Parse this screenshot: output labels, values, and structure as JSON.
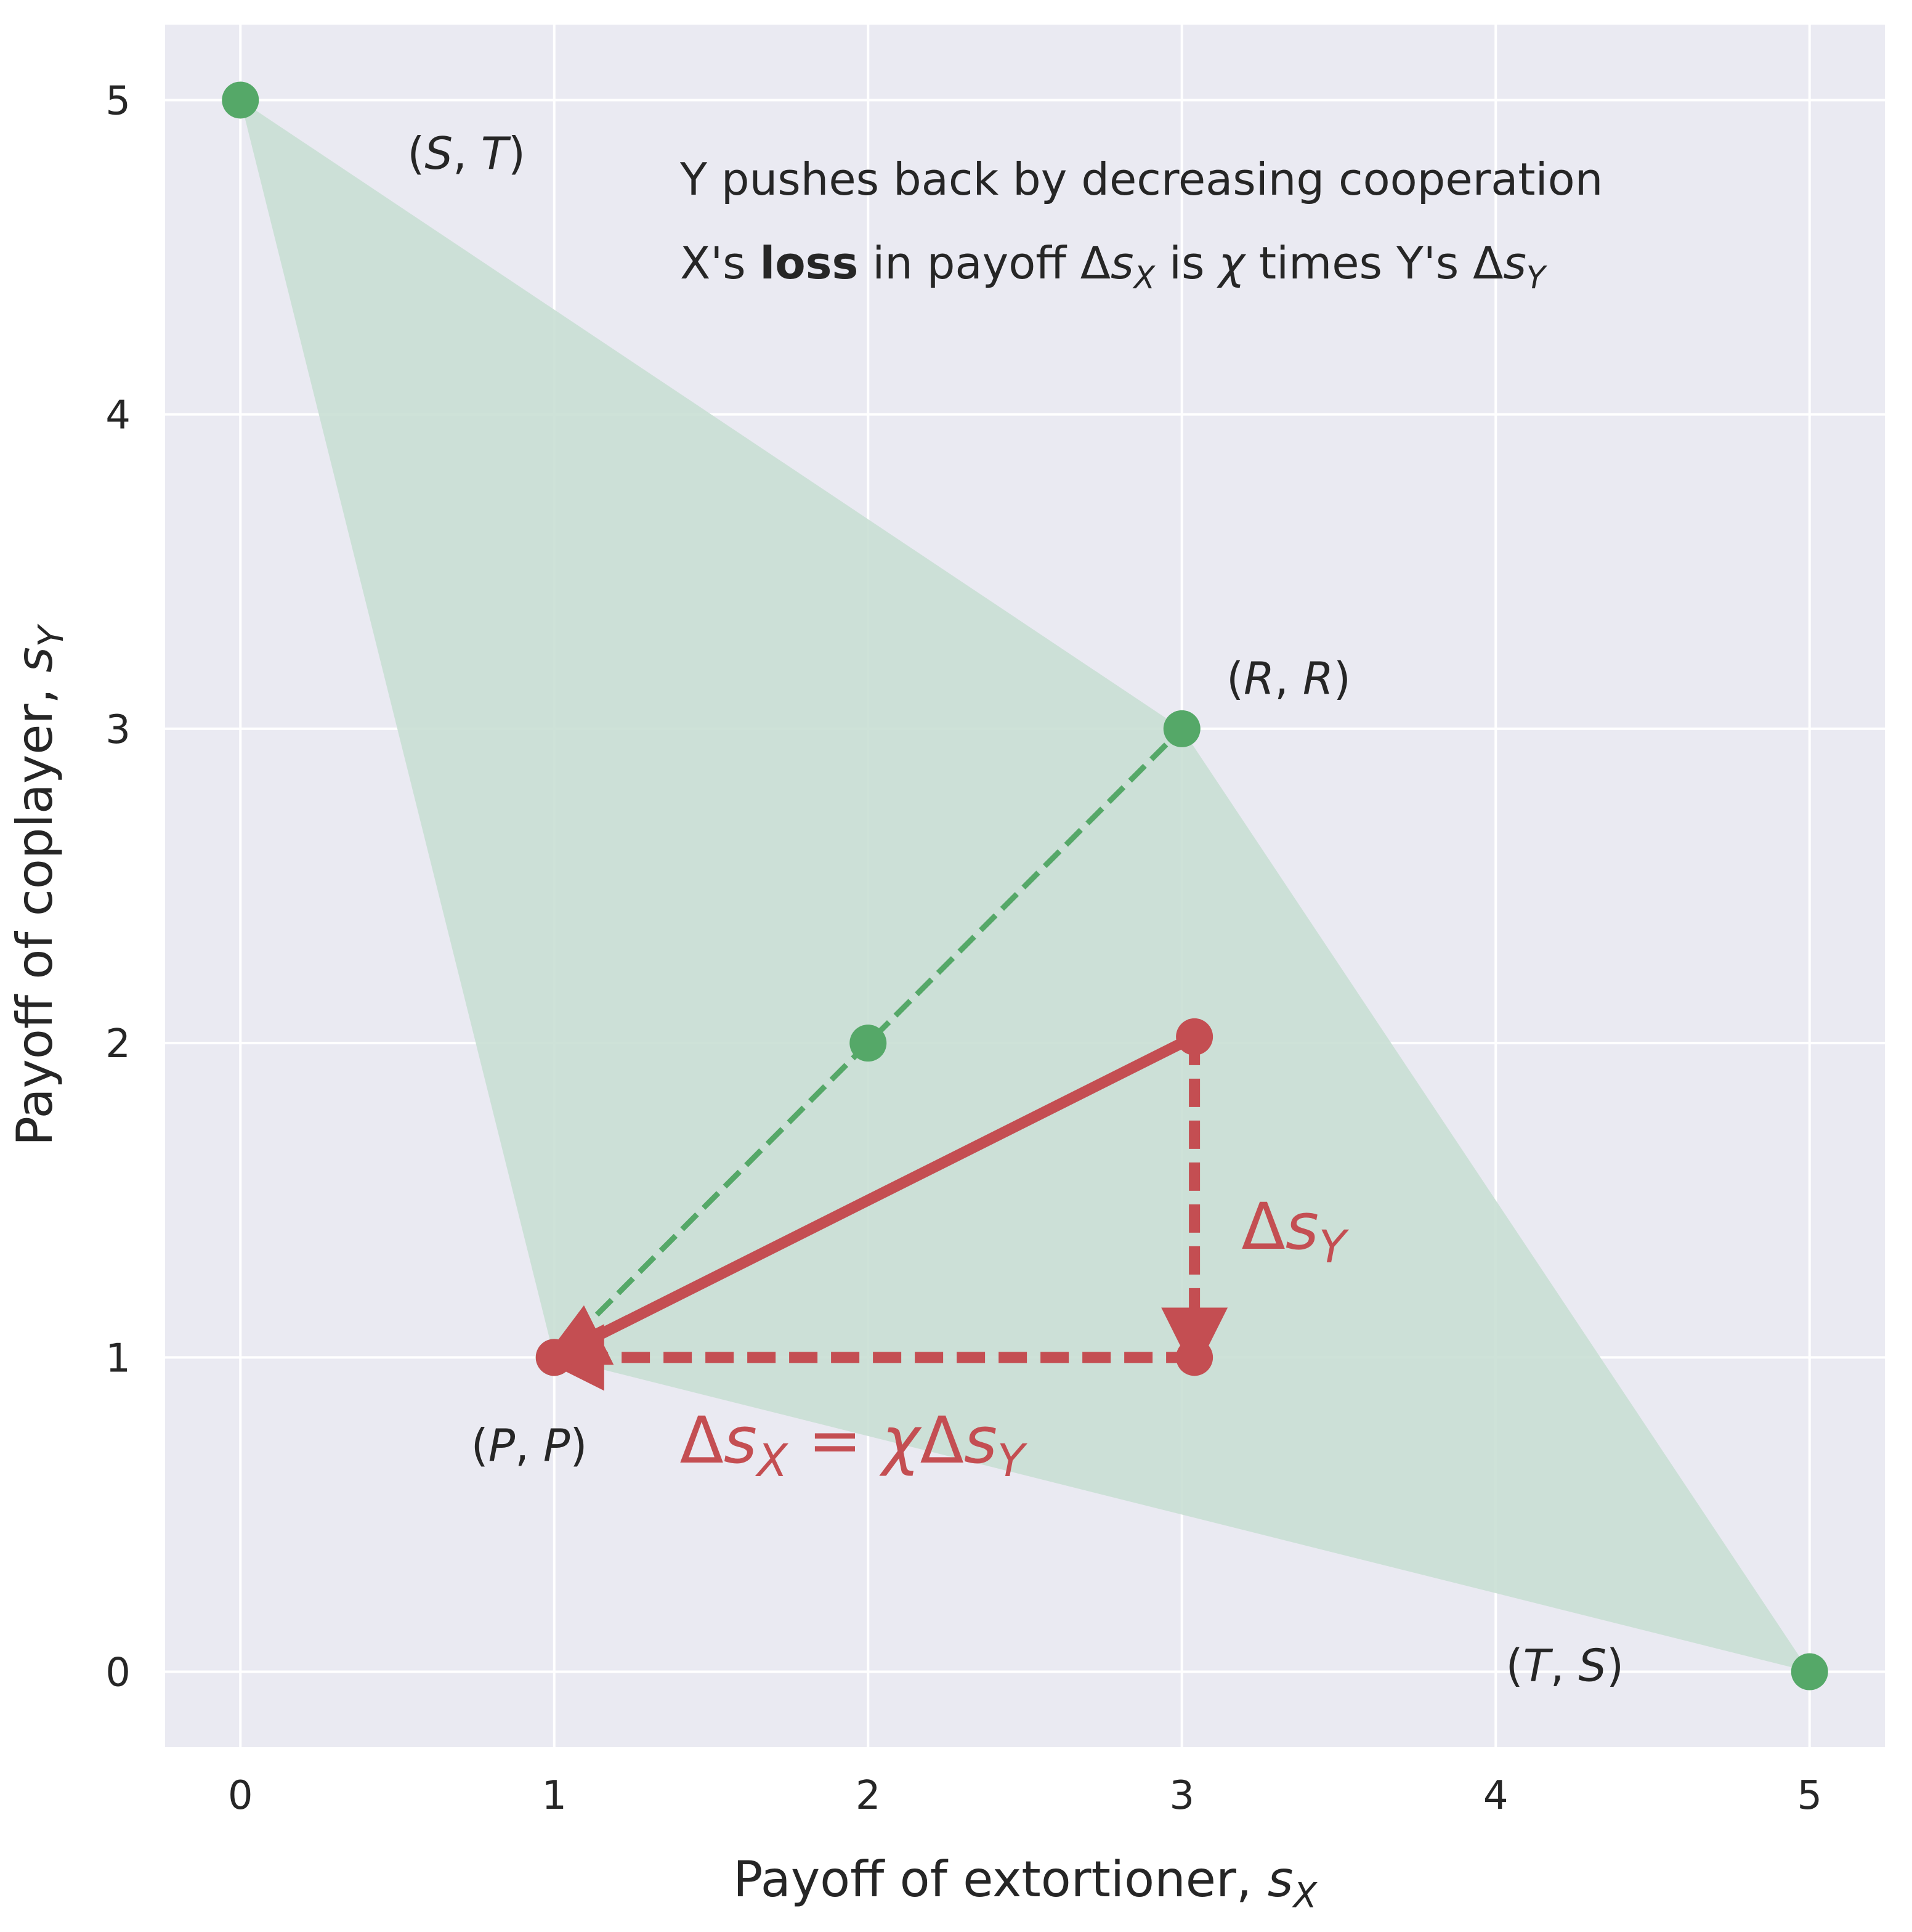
{
  "chart_data": {
    "type": "scatter",
    "xlabel": "Payoff of extortioner, s_X",
    "ylabel": "Payoff of coplayer, s_Y",
    "xlim": [
      -0.24,
      5.24
    ],
    "ylim": [
      -0.24,
      5.24
    ],
    "grid": true,
    "xticks": [
      0,
      1,
      2,
      3,
      4,
      5
    ],
    "yticks": [
      0,
      1,
      2,
      3,
      4,
      5
    ],
    "feasible_region": [
      [
        0,
        5
      ],
      [
        3,
        3
      ],
      [
        5,
        0
      ],
      [
        1,
        1
      ]
    ],
    "outcome_points": [
      {
        "label": "(S,T)",
        "x": 0,
        "y": 5
      },
      {
        "label": "(R,R)",
        "x": 3,
        "y": 3
      },
      {
        "label": "(P,P)",
        "x": 1,
        "y": 1
      },
      {
        "label": "(T,S)",
        "x": 5,
        "y": 0
      }
    ],
    "extra_point": {
      "x": 2,
      "y": 2
    },
    "diagonal": {
      "from": [
        1,
        1
      ],
      "to": [
        3,
        3
      ]
    },
    "red_points": [
      {
        "x": 3.04,
        "y": 2.02
      },
      {
        "x": 3.04,
        "y": 1.0
      },
      {
        "x": 1.0,
        "y": 1.0
      }
    ],
    "red_arrows": {
      "solid": {
        "from": [
          3.04,
          2.02
        ],
        "to": [
          1.0,
          1.0
        ]
      },
      "vertical": {
        "from": [
          3.04,
          2.02
        ],
        "to": [
          3.04,
          1.0
        ]
      },
      "horizontal": {
        "from": [
          3.04,
          1.0
        ],
        "to": [
          1.0,
          1.0
        ]
      }
    },
    "annotations": {
      "line1": "Y pushes back by decreasing cooperation",
      "line2_pre": "X's ",
      "line2_bold": "loss",
      "line2_post": " in payoff Δs_X is χ times Y's Δs_Y",
      "delta_y": "Δs_Y",
      "delta_x": "Δs_X = χΔs_Y"
    },
    "colors": {
      "background": "#eaeaf2",
      "grid": "#ffffff",
      "green": "#55a868",
      "fill": "#c9dfd4",
      "red": "#c44e52",
      "text": "#262626"
    }
  }
}
